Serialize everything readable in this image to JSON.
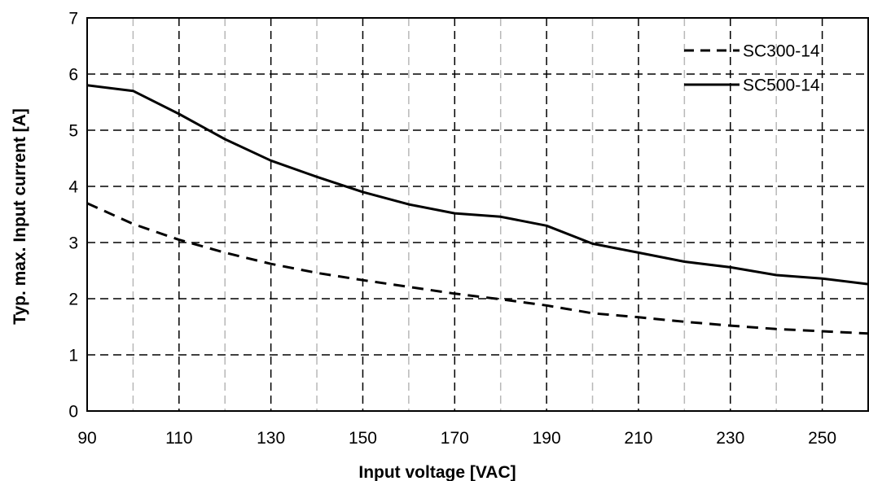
{
  "chart_data": {
    "type": "line",
    "title": "",
    "xlabel": "Input voltage [VAC]",
    "ylabel": "Typ. max. Input current [A]",
    "xlim": [
      90,
      260
    ],
    "ylim": [
      0,
      7
    ],
    "x_ticks": [
      90,
      110,
      130,
      150,
      170,
      190,
      210,
      230,
      250
    ],
    "x_tick_labels": [
      "90",
      "110",
      "130",
      "150",
      "170",
      "190",
      "210",
      "230",
      "250"
    ],
    "y_ticks": [
      0,
      1,
      2,
      3,
      4,
      5,
      6,
      7
    ],
    "y_tick_labels": [
      "0",
      "1",
      "2",
      "3",
      "4",
      "5",
      "6",
      "7"
    ],
    "major_grid_x": [
      110,
      130,
      150,
      170,
      190,
      210,
      230,
      250
    ],
    "minor_grid_x": [
      100,
      120,
      140,
      160,
      180,
      200,
      220,
      240
    ],
    "grid": true,
    "legend_position": "top-right",
    "series": [
      {
        "name": "SC300-14",
        "style": "dashed",
        "color": "#000000",
        "x": [
          90,
          100,
          110,
          120,
          130,
          140,
          150,
          160,
          170,
          180,
          190,
          200,
          210,
          220,
          230,
          240,
          250,
          260
        ],
        "y": [
          3.7,
          3.33,
          3.05,
          2.82,
          2.62,
          2.46,
          2.33,
          2.21,
          2.09,
          1.99,
          1.88,
          1.74,
          1.67,
          1.59,
          1.52,
          1.46,
          1.42,
          1.38
        ]
      },
      {
        "name": "SC500-14",
        "style": "solid",
        "color": "#000000",
        "x": [
          90,
          100,
          110,
          120,
          130,
          140,
          150,
          160,
          170,
          180,
          190,
          200,
          210,
          220,
          230,
          240,
          250,
          260
        ],
        "y": [
          5.8,
          5.7,
          5.29,
          4.84,
          4.46,
          4.17,
          3.9,
          3.68,
          3.52,
          3.46,
          3.3,
          2.98,
          2.82,
          2.66,
          2.56,
          2.42,
          2.36,
          2.26
        ]
      }
    ]
  }
}
